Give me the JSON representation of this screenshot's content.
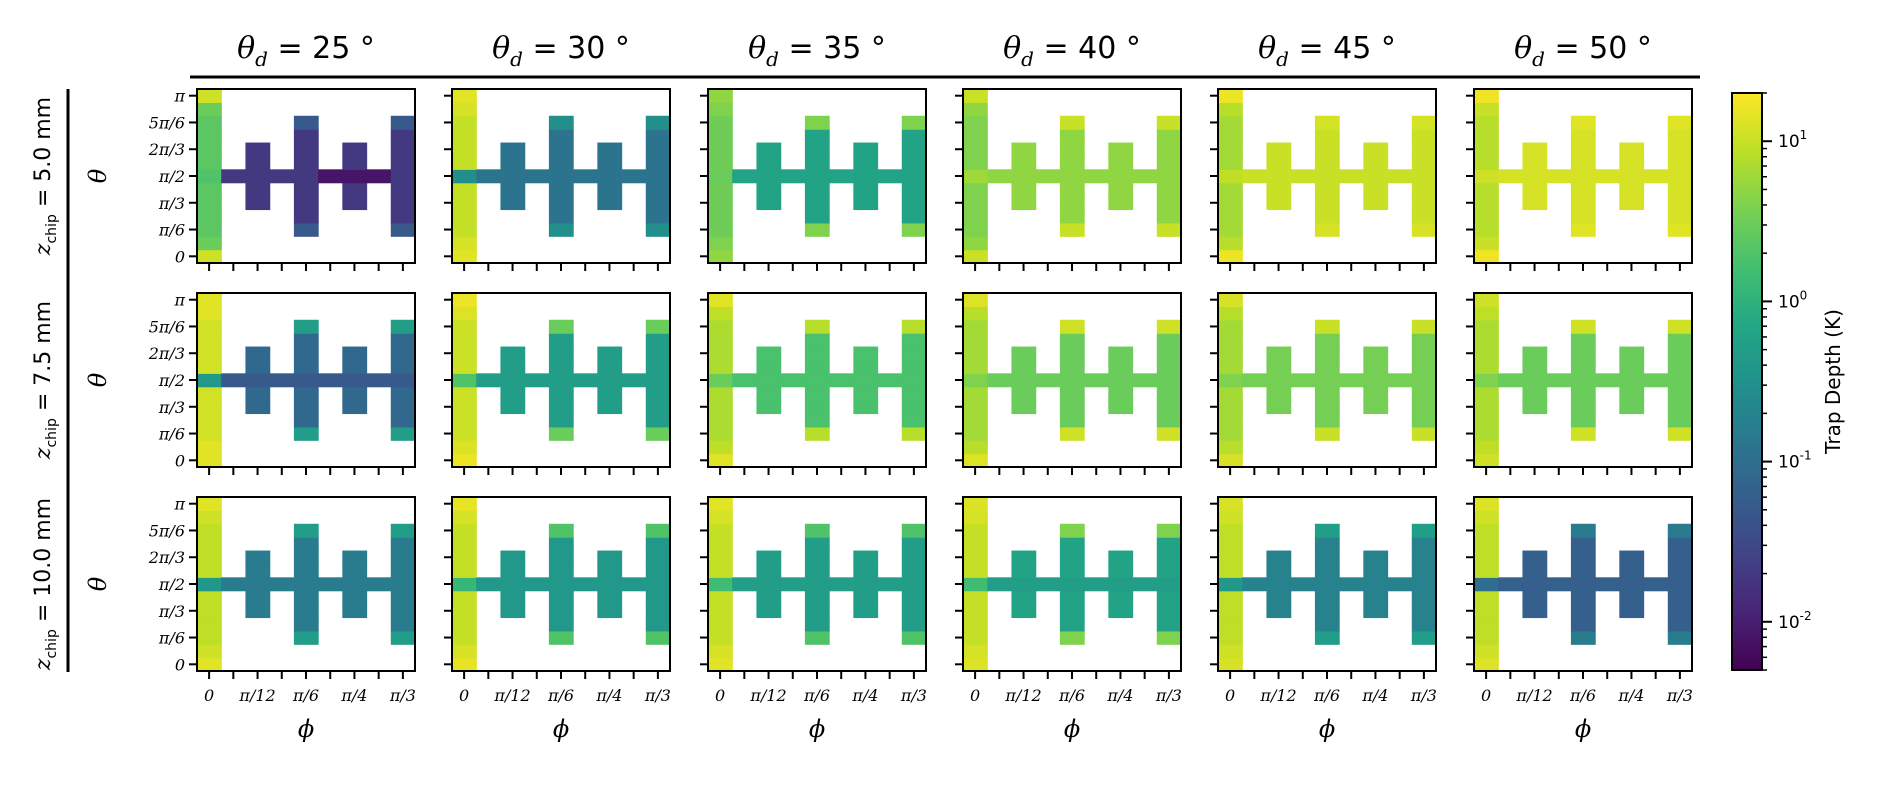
{
  "figure": {
    "col_prefix": "θ",
    "col_sub": "d",
    "col_unit": "°",
    "row_prefix": "z",
    "row_sub": "chip",
    "row_unit": "mm",
    "y_axis_label": "θ",
    "x_axis_label": "ϕ",
    "colorbar_label": "Trap Depth (K)"
  },
  "chart_data": {
    "type": "heatmap",
    "columns": [
      "25",
      "30",
      "35",
      "40",
      "45",
      "50"
    ],
    "rows": [
      "5.0",
      "7.5",
      "10.0"
    ],
    "x_ticks": [
      "0",
      "π/12",
      "π/6",
      "π/4",
      "π/3"
    ],
    "x_tick_positions": [
      0,
      2,
      4,
      6,
      8
    ],
    "y_ticks": [
      "π",
      "5π/6",
      "2π/3",
      "π/2",
      "π/3",
      "π/6",
      "0"
    ],
    "y_tick_positions": [
      12,
      10,
      8,
      6,
      4,
      2,
      0
    ],
    "phi_bins": 9,
    "theta_bins": 13,
    "colorbar": {
      "scale": "log",
      "range": [
        0.005,
        20
      ],
      "ticks": [
        "10^1",
        "10^0",
        "10^-1",
        "10^-2"
      ],
      "tick_values": [
        10,
        1,
        0.1,
        0.01
      ],
      "colormap": "viridis"
    },
    "panels": [
      [
        {
          "pole": 11,
          "mid": 0.02,
          "mid_alt": 0.008,
          "arm": 0.02,
          "edge": 0.05,
          "mid2": 2,
          "low": 3
        },
        {
          "pole": 14,
          "mid": 0.12,
          "arm": 0.12,
          "edge": 0.3,
          "mid2": 0.3,
          "low": 12
        },
        {
          "pole": 5,
          "mid": 0.6,
          "arm": 0.6,
          "edge": 4,
          "mid2": 3,
          "low": 4
        },
        {
          "pole": 10,
          "mid": 5,
          "arm": 5,
          "edge": 10,
          "mid2": 6,
          "low": 5
        },
        {
          "pole": 16,
          "mid": 10,
          "arm": 10,
          "edge": 12,
          "mid2": 9,
          "low": 8
        },
        {
          "pole": 17,
          "mid": 12,
          "arm": 12,
          "edge": 14,
          "mid2": 11,
          "low": 10
        }
      ],
      [
        {
          "pole": 14,
          "mid": 0.05,
          "arm": 0.08,
          "edge": 0.5,
          "mid2": 0.4,
          "low": 14
        },
        {
          "pole": 16,
          "mid": 0.5,
          "arm": 0.5,
          "edge": 3,
          "mid2": 2,
          "low": 13
        },
        {
          "pole": 14,
          "mid": 1.8,
          "arm": 1.8,
          "edge": 8,
          "mid2": 3,
          "low": 9
        },
        {
          "pole": 13,
          "mid": 3,
          "arm": 3,
          "edge": 11,
          "mid2": 4,
          "low": 8
        },
        {
          "pole": 12,
          "mid": 3.5,
          "arm": 3.5,
          "edge": 10,
          "mid2": 4,
          "low": 8
        },
        {
          "pole": 11,
          "mid": 3,
          "arm": 3,
          "edge": 11,
          "mid2": 4,
          "low": 9
        }
      ],
      [
        {
          "pole": 14,
          "mid": 0.15,
          "arm": 0.15,
          "edge": 0.5,
          "mid2": 0.4,
          "low": 11
        },
        {
          "pole": 15,
          "mid": 0.4,
          "arm": 0.4,
          "edge": 2,
          "mid2": 1.2,
          "low": 12
        },
        {
          "pole": 14,
          "mid": 0.5,
          "arm": 0.5,
          "edge": 2,
          "mid2": 1.5,
          "low": 12
        },
        {
          "pole": 13,
          "mid": 0.5,
          "arm": 0.6,
          "edge": 4,
          "mid2": 1.5,
          "low": 12
        },
        {
          "pole": 12,
          "mid": 0.2,
          "arm": 0.2,
          "edge": 0.5,
          "mid2": 0.4,
          "low": 11
        },
        {
          "pole": 13,
          "mid": 0.06,
          "arm": 0.06,
          "edge": 0.15,
          "mid2": 0.1,
          "low": 11
        }
      ]
    ]
  }
}
